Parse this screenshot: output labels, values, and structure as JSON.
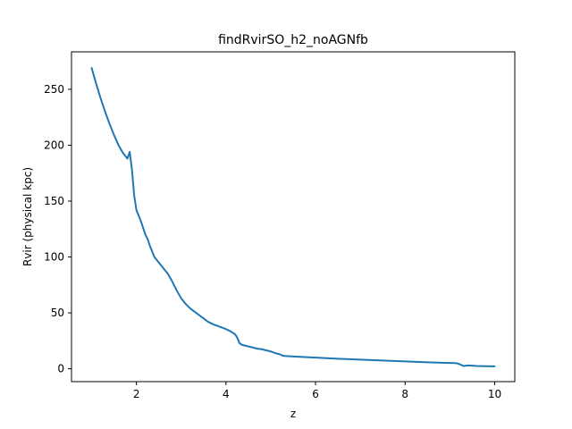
{
  "chart_data": {
    "type": "line",
    "title": "findRvirSO_h2_noAGNfb",
    "xlabel": "z",
    "ylabel": "Rvir (physical kpc)",
    "xlim": [
      0.55,
      10.45
    ],
    "ylim": [
      -11.5,
      283.5
    ],
    "xticks": [
      2,
      4,
      6,
      8,
      10
    ],
    "yticks": [
      0,
      50,
      100,
      150,
      200,
      250
    ],
    "grid": false,
    "legend": "none",
    "series": [
      {
        "color": "#1f77b4",
        "x": [
          1.0,
          1.1,
          1.2,
          1.3,
          1.4,
          1.5,
          1.6,
          1.7,
          1.8,
          1.85,
          1.9,
          1.95,
          2.0,
          2.05,
          2.1,
          2.2,
          2.25,
          2.3,
          2.4,
          2.5,
          2.6,
          2.7,
          2.8,
          2.85,
          2.9,
          3.0,
          3.1,
          3.2,
          3.3,
          3.4,
          3.5,
          3.6,
          3.7,
          3.8,
          3.9,
          4.0,
          4.1,
          4.2,
          4.25,
          4.3,
          4.35,
          4.4,
          4.5,
          4.6,
          4.7,
          4.8,
          4.9,
          5.0,
          5.1,
          5.2,
          5.25,
          5.3,
          5.5,
          6.0,
          6.5,
          7.0,
          7.5,
          8.0,
          8.5,
          9.0,
          9.15,
          9.25,
          9.3,
          9.4,
          9.5,
          9.6,
          9.8,
          10.0
        ],
        "y": [
          269,
          255,
          242,
          230,
          219,
          209,
          200,
          193,
          188,
          194,
          178,
          155,
          142,
          137,
          132,
          120,
          116,
          110,
          100,
          95,
          90,
          85,
          78,
          74,
          70,
          63,
          58,
          54,
          51,
          48,
          45,
          42,
          40,
          38.5,
          37,
          35.5,
          33.5,
          31,
          28,
          23,
          21.5,
          21,
          20,
          19,
          18,
          17.5,
          16.5,
          15.5,
          14,
          13,
          12,
          11.5,
          11,
          10,
          9,
          8.2,
          7.4,
          6.6,
          5.8,
          5.2,
          5.0,
          3.5,
          2.5,
          3.0,
          2.8,
          2.5,
          2.3,
          2.2
        ]
      }
    ]
  }
}
